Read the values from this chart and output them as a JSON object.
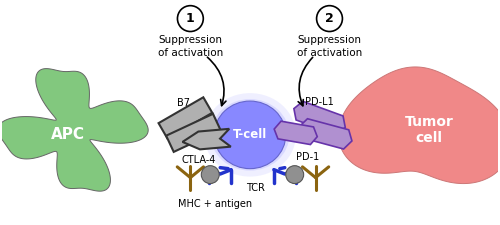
{
  "bg_color": "#ffffff",
  "apc_color": "#82c87e",
  "apc_edge": "#666666",
  "apc_text": "APC",
  "tumor_color": "#f08888",
  "tumor_edge": "#cc7777",
  "tumor_text": "Tumor\ncell",
  "tcell_color_center": "#8888ff",
  "tcell_color_edge": "#aaaaff",
  "tcell_text": "T-cell",
  "b7_color": "#b0b0b0",
  "b7_edge": "#333333",
  "pdl1_color": "#b090d0",
  "pdl1_edge": "#6633aa",
  "tcr_color": "#2233cc",
  "mhc_color": "#8b6410",
  "ball_color": "#909090",
  "ball_edge": "#555555",
  "label_b7": "B7",
  "label_ctla4": "CTLA-4",
  "label_pdl1": "PD-L1",
  "label_pd1": "PD-1",
  "label_tcr": "TCR",
  "label_mhc": "MHC + antigen",
  "circle1_text": "1",
  "circle2_text": "2",
  "suppression_text": "Suppression\nof activation"
}
